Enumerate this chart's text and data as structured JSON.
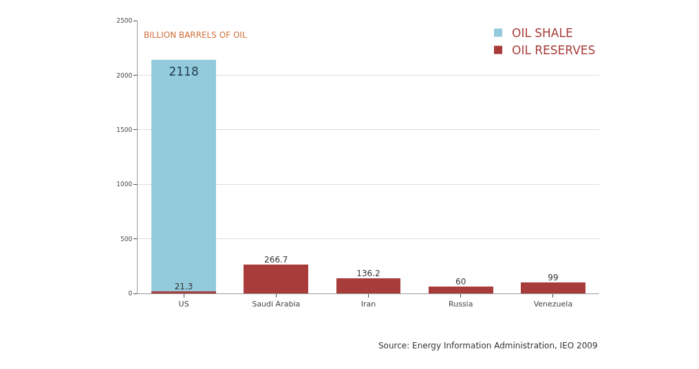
{
  "chart_data": {
    "type": "bar",
    "stacked": true,
    "categories": [
      "US",
      "Saudi Arabia",
      "Iran",
      "Russia",
      "Venezuela"
    ],
    "series": [
      {
        "name": "OIL RESERVES",
        "color": "#a83c3a",
        "values": [
          21.3,
          266.7,
          136.2,
          60,
          99
        ]
      },
      {
        "name": "OIL SHALE",
        "color": "#93cbdc",
        "values": [
          2118,
          null,
          null,
          null,
          null
        ]
      }
    ],
    "ylim": [
      0,
      2500
    ],
    "yticks": [
      0,
      500,
      1000,
      1500,
      2000,
      2500
    ],
    "grid": "y",
    "legend": "top right",
    "data_labels": true,
    "annotations": [
      "BILLION BARRELS OF OIL",
      "Source: Energy Information Administration, IEO 2009"
    ]
  }
}
